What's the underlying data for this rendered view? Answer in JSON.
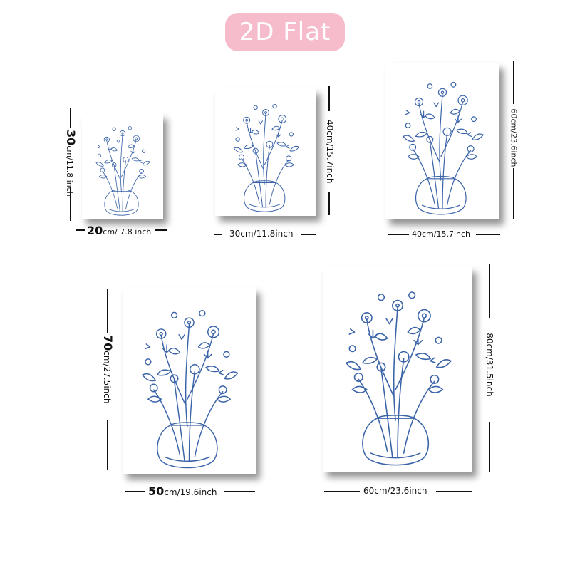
{
  "title": "2D Flat",
  "colors": {
    "badge": "#f6bccb",
    "ink": "#3a63a8"
  },
  "prints": [
    {
      "id": "20x30",
      "width_num": "20",
      "width_unit": "cm/ 7.8 inch",
      "height_num": "30",
      "height_unit": "cm/11.8 inch"
    },
    {
      "id": "30x40",
      "width_label": "30cm/11.8inch",
      "height_label": "40cm/15.7inch"
    },
    {
      "id": "40x60",
      "width_label": "40cm/15.7inch",
      "height_label": "60cm/23.6inch"
    },
    {
      "id": "50x70",
      "width_num": "50",
      "width_unit": "cm/19.6inch",
      "height_num": "70",
      "height_unit": "cm/27.5inch"
    },
    {
      "id": "60x80",
      "width_label": "60cm/23.6inch",
      "height_label": "80cm/31.5inch"
    }
  ],
  "artwork_icon": "flower-vase-line-art"
}
